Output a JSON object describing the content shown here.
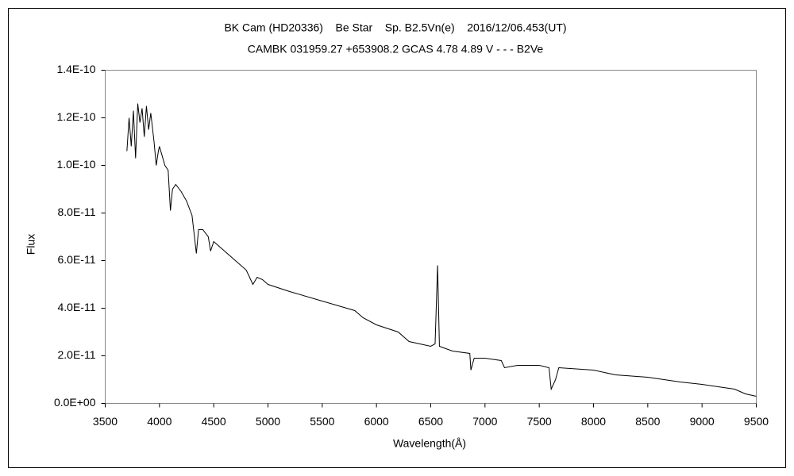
{
  "chart_data": {
    "type": "line",
    "title": "BK Cam (HD20336)    Be Star    Sp. B2.5Vn(e)    2016/12/06.453(UT)",
    "subtitle": "CAMBK 031959.27 +653908.2 GCAS 4.78 4.89 V - - - B2Ve",
    "x_label": "Wavelength(Å)",
    "y_label": "Flux",
    "x": [
      3700,
      3720,
      3740,
      3760,
      3780,
      3800,
      3820,
      3840,
      3860,
      3880,
      3900,
      3920,
      3950,
      3970,
      3990,
      4000,
      4050,
      4080,
      4101,
      4120,
      4150,
      4200,
      4250,
      4300,
      4340,
      4360,
      4400,
      4450,
      4471,
      4500,
      4600,
      4700,
      4800,
      4861,
      4900,
      4950,
      5000,
      5200,
      5500,
      5800,
      5876,
      6000,
      6200,
      6300,
      6400,
      6500,
      6540,
      6563,
      6580,
      6700,
      6860,
      6870,
      6900,
      7000,
      7150,
      7180,
      7300,
      7500,
      7590,
      7610,
      7650,
      7680,
      8000,
      8200,
      8500,
      8800,
      9000,
      9300,
      9400,
      9500
    ],
    "values": [
      1.06e-10,
      1.2e-10,
      1.08e-10,
      1.23e-10,
      1.03e-10,
      1.26e-10,
      1.18e-10,
      1.24e-10,
      1.12e-10,
      1.25e-10,
      1.15e-10,
      1.22e-10,
      1.1e-10,
      1e-10,
      1.06e-10,
      1.08e-10,
      1e-10,
      9.8e-11,
      8.1e-11,
      9e-11,
      9.2e-11,
      8.9e-11,
      8.5e-11,
      7.9e-11,
      6.3e-11,
      7.3e-11,
      7.3e-11,
      7e-11,
      6.4e-11,
      6.8e-11,
      6.4e-11,
      6e-11,
      5.6e-11,
      5e-11,
      5.3e-11,
      5.2e-11,
      5e-11,
      4.7e-11,
      4.3e-11,
      3.9e-11,
      3.6e-11,
      3.3e-11,
      3e-11,
      2.6e-11,
      2.5e-11,
      2.4e-11,
      2.5e-11,
      5.8e-11,
      2.4e-11,
      2.2e-11,
      2.1e-11,
      1.4e-11,
      1.9e-11,
      1.9e-11,
      1.8e-11,
      1.5e-11,
      1.6e-11,
      1.6e-11,
      1.5e-11,
      6e-12,
      1e-11,
      1.5e-11,
      1.4e-11,
      1.2e-11,
      1.1e-11,
      9e-12,
      8e-12,
      6e-12,
      4e-12,
      3e-12
    ],
    "color": "#000000",
    "xlim": [
      3500,
      9500
    ],
    "xticks": [
      3500,
      4000,
      4500,
      5000,
      5500,
      6000,
      6500,
      7000,
      7500,
      8000,
      8500,
      9000,
      9500
    ],
    "ylim": [
      0,
      1.4e-10
    ],
    "yticks": [
      {
        "value": 0,
        "label": "0.0E+00"
      },
      {
        "value": 2e-11,
        "label": "2.0E-11"
      },
      {
        "value": 4e-11,
        "label": "4.0E-11"
      },
      {
        "value": 6e-11,
        "label": "6.0E-11"
      },
      {
        "value": 8e-11,
        "label": "8.0E-11"
      },
      {
        "value": 1e-10,
        "label": "1.0E-10"
      },
      {
        "value": 1.2e-10,
        "label": "1.2E-10"
      },
      {
        "value": 1.4e-10,
        "label": "1.4E-10"
      }
    ],
    "grid": false
  }
}
